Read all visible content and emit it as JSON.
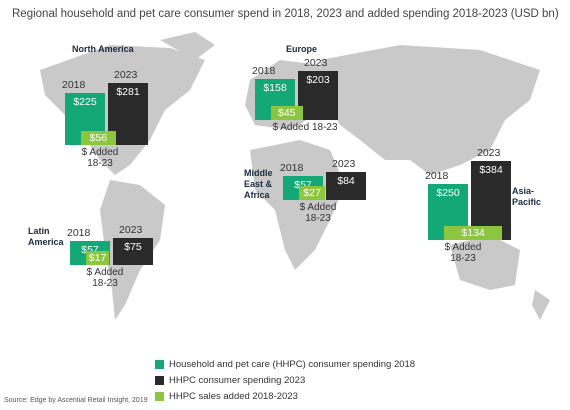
{
  "chart_data": {
    "type": "bar",
    "title": "Regional household and pet care consumer spend in 2018, 2023 and added spending 2018-2023 (USD bn)",
    "source": "Source: Edge by Ascential Retail Insight, 2019",
    "categories": [
      "North America",
      "Europe",
      "Middle East & Africa",
      "Latin America",
      "Asia-Pacific"
    ],
    "year_labels": [
      "2018",
      "2023"
    ],
    "added_label": "$ Added 18-23",
    "series": [
      {
        "name": "Household and pet care (HHPC) consumer spending 2018",
        "color": "#14a877",
        "values": [
          225,
          158,
          57,
          57,
          250
        ],
        "value_labels": [
          "$225",
          "$158",
          "$57",
          "$57",
          "$250"
        ]
      },
      {
        "name": "HHPC consumer spending 2023",
        "color": "#2a2a2a",
        "values": [
          281,
          203,
          84,
          75,
          384
        ],
        "value_labels": [
          "$281",
          "$203",
          "$84",
          "$75",
          "$384"
        ]
      },
      {
        "name": "HHPC sales added 2018-2023",
        "color": "#8cc63e",
        "values": [
          56,
          45,
          27,
          17,
          134
        ],
        "value_labels": [
          "$56",
          "$45",
          "$27",
          "$17",
          "$134"
        ]
      }
    ]
  }
}
